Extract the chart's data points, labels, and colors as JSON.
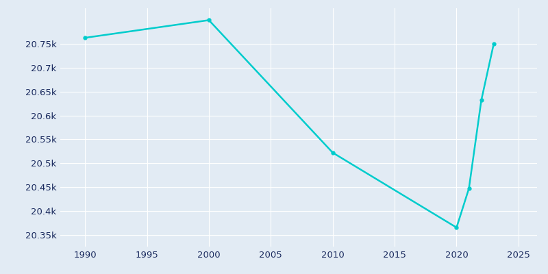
{
  "years": [
    1990,
    2000,
    2010,
    2020,
    2021,
    2022,
    2023
  ],
  "population": [
    20763,
    20800,
    20522,
    20365,
    20447,
    20632,
    20750
  ],
  "line_color": "#00CCCC",
  "marker": "o",
  "marker_size": 3.5,
  "bg_color": "#E2EBF4",
  "grid_color": "#ffffff",
  "text_color": "#1a2a5e",
  "xlim": [
    1988,
    2026.5
  ],
  "ylim": [
    20325,
    20825
  ],
  "yticks": [
    20350,
    20400,
    20450,
    20500,
    20550,
    20600,
    20650,
    20700,
    20750
  ],
  "ytick_labels": [
    "20.35k",
    "20.4k",
    "20.45k",
    "20.5k",
    "20.55k",
    "20.6k",
    "20.65k",
    "20.7k",
    "20.75k"
  ],
  "xticks": [
    1990,
    1995,
    2000,
    2005,
    2010,
    2015,
    2020,
    2025
  ],
  "figsize": [
    8.0,
    4.0
  ],
  "dpi": 100
}
